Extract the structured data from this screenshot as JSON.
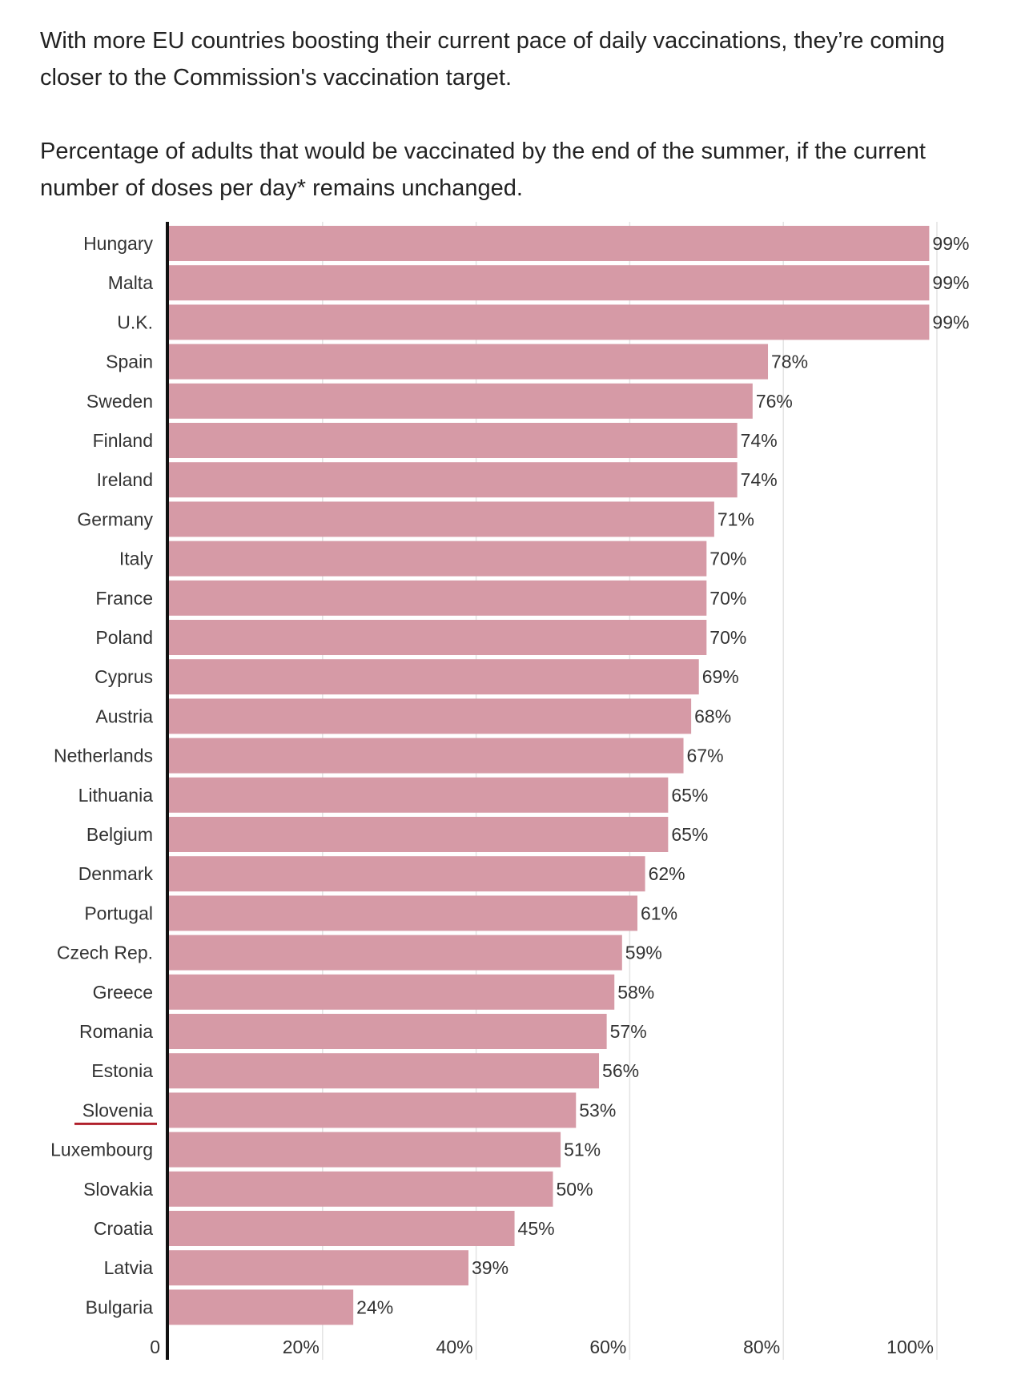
{
  "intro_text": "With more EU countries boosting their current pace of daily vaccinations, they’re coming closer to the Commission's vaccination target.",
  "colors": {
    "bar": "#d69aa6",
    "highlight_underline": "#b0202b",
    "axis": "#111111",
    "grid": "#e3e3e3"
  },
  "chart_data": {
    "type": "bar",
    "orientation": "horizontal",
    "title": "Percentage of adults that would be vaccinated by the end of the summer, if the current number of doses per day* remains unchanged.",
    "categories": [
      "Hungary",
      "Malta",
      "U.K.",
      "Spain",
      "Sweden",
      "Finland",
      "Ireland",
      "Germany",
      "Italy",
      "France",
      "Poland",
      "Cyprus",
      "Austria",
      "Netherlands",
      "Lithuania",
      "Belgium",
      "Denmark",
      "Portugal",
      "Czech Rep.",
      "Greece",
      "Romania",
      "Estonia",
      "Slovenia",
      "Luxembourg",
      "Slovakia",
      "Croatia",
      "Latvia",
      "Bulgaria"
    ],
    "values": [
      99,
      99,
      99,
      78,
      76,
      74,
      74,
      71,
      70,
      70,
      70,
      69,
      68,
      67,
      65,
      65,
      62,
      61,
      59,
      58,
      57,
      56,
      53,
      51,
      50,
      45,
      39,
      24
    ],
    "value_labels": [
      "99%",
      "99%",
      "99%",
      "78%",
      "76%",
      "74%",
      "74%",
      "71%",
      "70%",
      "70%",
      "70%",
      "69%",
      "68%",
      "67%",
      "65%",
      "65%",
      "62%",
      "61%",
      "59%",
      "58%",
      "57%",
      "56%",
      "53%",
      "51%",
      "50%",
      "45%",
      "39%",
      "24%"
    ],
    "highlighted_category": "Slovenia",
    "x_ticks": [
      0,
      20,
      40,
      60,
      80,
      100
    ],
    "x_tick_labels": [
      "0",
      "20%",
      "40%",
      "60%",
      "80%",
      "100%"
    ],
    "xlim": [
      0,
      100
    ],
    "xlabel": "",
    "ylabel": "",
    "grid": true,
    "legend": false
  }
}
